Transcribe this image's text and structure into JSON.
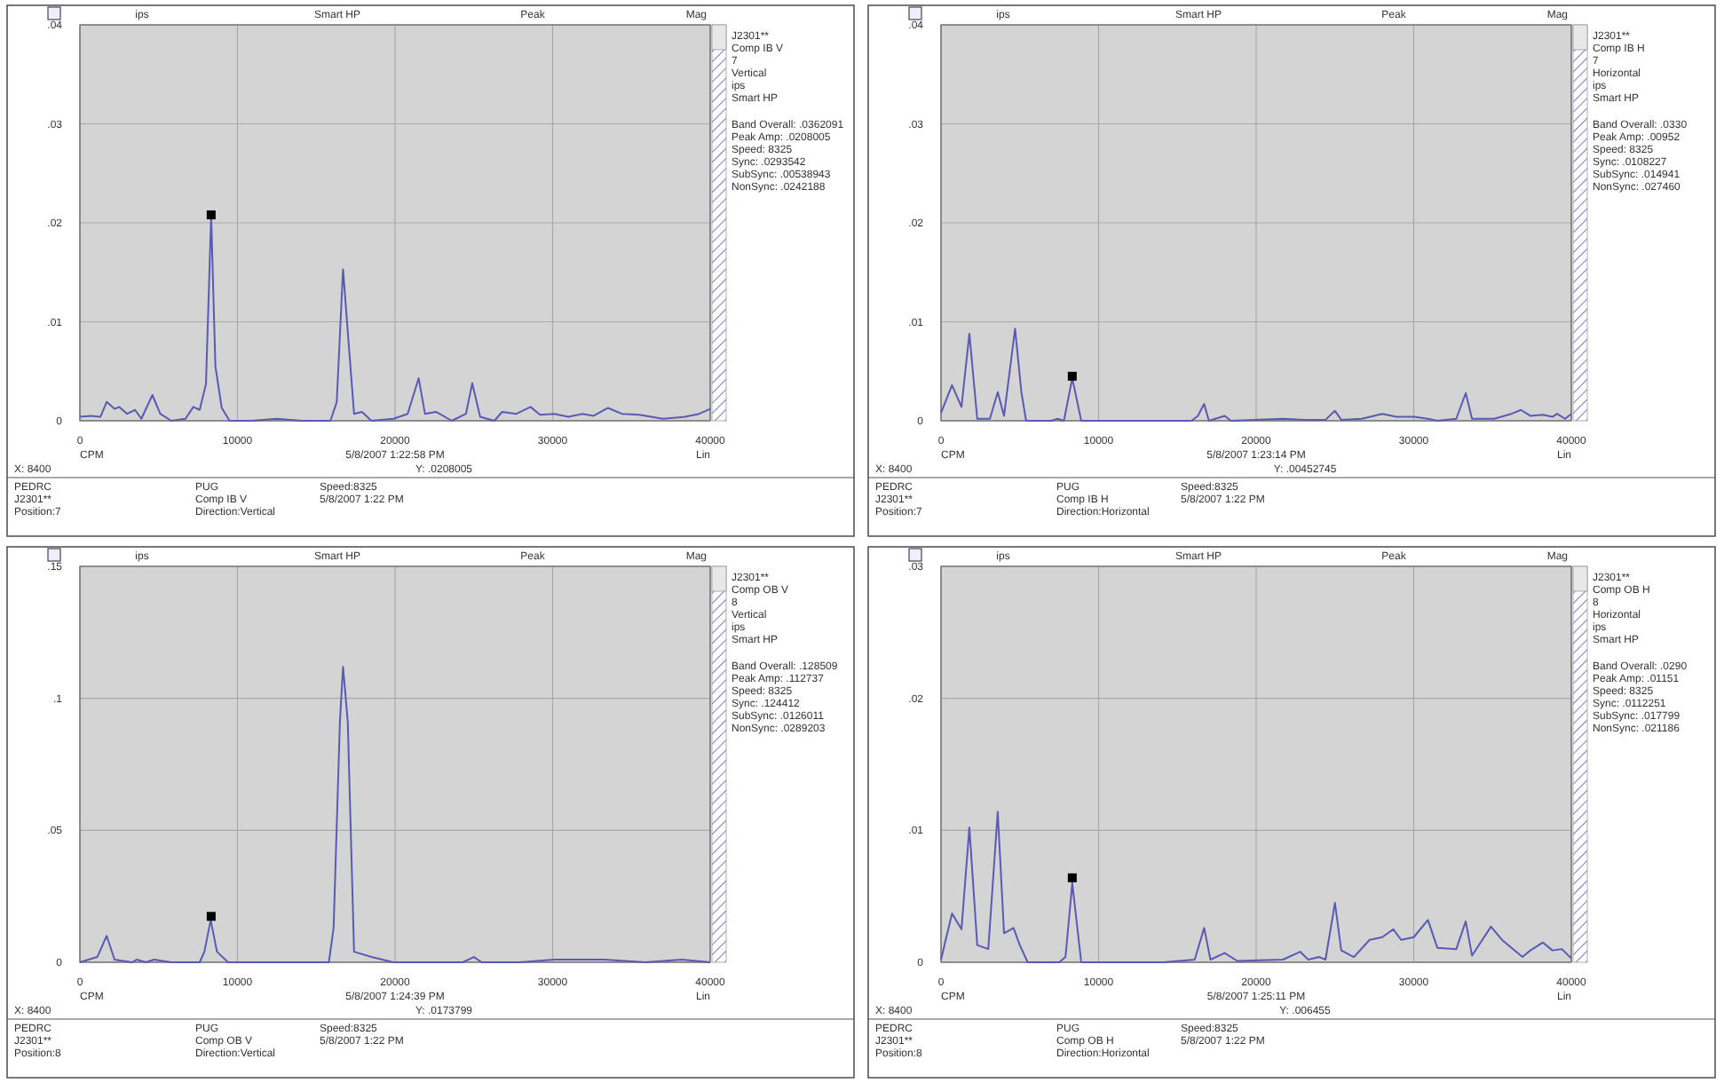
{
  "chart_data": [
    {
      "type": "line",
      "subtitle": "5/8/2007 1:22:58 PM",
      "xlabel": "CPM",
      "xlim": [
        0,
        40000
      ],
      "xticks": [
        0,
        10000,
        20000,
        30000,
        40000
      ],
      "ylim": [
        0,
        0.04
      ],
      "yticks": [
        {
          "value": 0,
          "label": "0"
        },
        {
          "value": 0.01,
          "label": ".01"
        },
        {
          "value": 0.02,
          "label": ".02"
        },
        {
          "value": 0.03,
          "label": ".03"
        },
        {
          "value": 0.04,
          "label": ".04"
        }
      ],
      "grid": true,
      "series": [
        {
          "color": "#5a5ab4",
          "x": [
            0,
            700,
            1300,
            1700,
            2200,
            2500,
            3000,
            3500,
            3900,
            4600,
            5100,
            5800,
            6700,
            7200,
            7600,
            8000,
            8330,
            8600,
            9000,
            9500,
            10900,
            12500,
            14100,
            15900,
            16300,
            16700,
            17000,
            17400,
            17900,
            18500,
            19900,
            20800,
            21500,
            21900,
            22600,
            23600,
            24500,
            24900,
            25400,
            26300,
            26800,
            27700,
            28600,
            29200,
            30100,
            31000,
            31900,
            32600,
            33500,
            34400,
            35500,
            37000,
            38400,
            39300,
            40000
          ],
          "values": [
            0.0004,
            0.0005,
            0.0004,
            0.0019,
            0.0012,
            0.0014,
            0.0007,
            0.0011,
            0.0002,
            0.0026,
            0.0007,
            0,
            0.0002,
            0.0014,
            0.0011,
            0.0037,
            0.0207,
            0.0055,
            0.0013,
            0,
            0,
            0.0002,
            0,
            0,
            0.0019,
            0.0153,
            0.009,
            0.0007,
            0.0009,
            0,
            0.0002,
            0.0007,
            0.0043,
            0.0007,
            0.0009,
            0,
            0.0007,
            0.0038,
            0.0004,
            0,
            0.0009,
            0.0007,
            0.0014,
            0.0006,
            0.0007,
            0.0004,
            0.0007,
            0.0005,
            0.0013,
            0.0007,
            0.0006,
            0.0002,
            0.0004,
            0.0007,
            0.0012
          ]
        },
        {
          "type": "scatter",
          "marker": "square",
          "color": "#000000",
          "x": [
            8330
          ],
          "values": [
            0.0208
          ]
        }
      ],
      "annotations": [
        "ips",
        "Smart HP",
        "Peak",
        "Mag",
        "Lin",
        "X: 8400",
        "Y: .0208005",
        "J2301**",
        "Comp IB V",
        "7",
        "Vertical",
        "ips",
        "Smart HP",
        "Band Overall: .0362091",
        "Peak Amp: .0208005",
        "Speed: 8325",
        "Sync: .0293542",
        "SubSync: .00538943",
        "NonSync: .0242188",
        "PEDRC",
        "J2301**",
        "Position:7",
        "PUG",
        "Comp IB V",
        "Direction:Vertical",
        "Speed:8325",
        "5/8/2007 1:22 PM"
      ]
    },
    {
      "type": "line",
      "subtitle": "5/8/2007 1:23:14 PM",
      "xlabel": "CPM",
      "xlim": [
        0,
        40000
      ],
      "xticks": [
        0,
        10000,
        20000,
        30000,
        40000
      ],
      "ylim": [
        0,
        0.04
      ],
      "yticks": [
        {
          "value": 0,
          "label": "0"
        },
        {
          "value": 0.01,
          "label": ".01"
        },
        {
          "value": 0.02,
          "label": ".02"
        },
        {
          "value": 0.03,
          "label": ".03"
        },
        {
          "value": 0.04,
          "label": ".04"
        }
      ],
      "grid": true,
      "series": [
        {
          "color": "#5a5ab4",
          "x": [
            0,
            700,
            1300,
            1800,
            2300,
            3100,
            3600,
            4000,
            4700,
            5100,
            5400,
            7000,
            7400,
            7800,
            8330,
            8900,
            10400,
            13000,
            15900,
            16300,
            16700,
            17000,
            18000,
            18400,
            19900,
            21700,
            23100,
            24400,
            25000,
            25400,
            26700,
            28000,
            28900,
            30000,
            30900,
            31500,
            32700,
            33300,
            33700,
            35100,
            36200,
            36800,
            37400,
            38200,
            38800,
            39100,
            39600,
            40000
          ],
          "values": [
            0.0008,
            0.0036,
            0.0014,
            0.0088,
            0.0002,
            0.0002,
            0.0029,
            0.0005,
            0.0093,
            0.0029,
            0,
            0,
            0.0002,
            0,
            0.0043,
            0,
            0,
            0,
            0,
            0.0005,
            0.0017,
            0,
            0.0005,
            0,
            0.0001,
            0.0002,
            0.0001,
            0.0001,
            0.001,
            0.0001,
            0.0002,
            0.0007,
            0.0004,
            0.0004,
            0.0002,
            0,
            0.0002,
            0.0028,
            0.0002,
            0.0002,
            0.0007,
            0.0011,
            0.0005,
            0.0006,
            0.0004,
            0.0007,
            0.0002,
            0.0007
          ]
        },
        {
          "type": "scatter",
          "marker": "square",
          "color": "#000000",
          "x": [
            8330
          ],
          "values": [
            0.0045
          ]
        }
      ],
      "annotations": [
        "ips",
        "Smart HP",
        "Peak",
        "Mag",
        "Lin",
        "X: 8400",
        "Y: .00452745",
        "J2301**",
        "Comp IB H",
        "7",
        "Horizontal",
        "ips",
        "Smart HP",
        "Band Overall: .0330",
        "Peak Amp: .00952",
        "Speed: 8325",
        "Sync: .0108227",
        "SubSync: .014941",
        "NonSync: .027460",
        "PEDRC",
        "J2301**",
        "Position:7",
        "PUG",
        "Comp IB H",
        "Direction:Horizontal",
        "Speed:8325",
        "5/8/2007 1:22 PM"
      ]
    },
    {
      "type": "line",
      "subtitle": "5/8/2007 1:24:39 PM",
      "xlabel": "CPM",
      "xlim": [
        0,
        40000
      ],
      "xticks": [
        0,
        10000,
        20000,
        30000,
        40000
      ],
      "ylim": [
        0,
        0.15
      ],
      "yticks": [
        {
          "value": 0,
          "label": "0"
        },
        {
          "value": 0.05,
          "label": ".05"
        },
        {
          "value": 0.1,
          "label": ".1"
        },
        {
          "value": 0.15,
          "label": ".15"
        }
      ],
      "grid": true,
      "series": [
        {
          "color": "#5a5ab4",
          "x": [
            0,
            1100,
            1700,
            2200,
            3300,
            3600,
            4200,
            4700,
            5800,
            7100,
            7600,
            7900,
            8300,
            8700,
            9400,
            11600,
            13400,
            14900,
            15800,
            16100,
            16500,
            16700,
            17000,
            17400,
            18500,
            19900,
            21400,
            22800,
            24300,
            25000,
            25500,
            27900,
            30100,
            33300,
            35900,
            38200,
            40000
          ],
          "values": [
            0,
            0.002,
            0.01,
            0.001,
            0,
            0.001,
            0,
            0.001,
            0,
            0,
            0,
            0.004,
            0.016,
            0.004,
            0,
            0,
            0,
            0,
            0,
            0.013,
            0.091,
            0.112,
            0.091,
            0.004,
            0.002,
            0,
            0,
            0,
            0,
            0.002,
            0,
            0,
            0.001,
            0.001,
            0,
            0.001,
            0
          ]
        },
        {
          "type": "scatter",
          "marker": "square",
          "color": "#000000",
          "x": [
            8330
          ],
          "values": [
            0.0174
          ]
        }
      ],
      "annotations": [
        "ips",
        "Smart HP",
        "Peak",
        "Mag",
        "Lin",
        "X: 8400",
        "Y: .0173799",
        "J2301**",
        "Comp OB V",
        "8",
        "Vertical",
        "ips",
        "Smart HP",
        "Band Overall: .128509",
        "Peak Amp: .112737",
        "Speed: 8325",
        "Sync: .124412",
        "SubSync: .0126011",
        "NonSync: .0289203",
        "PEDRC",
        "J2301**",
        "Position:8",
        "PUG",
        "Comp OB V",
        "Direction:Vertical",
        "Speed:8325",
        "5/8/2007 1:22 PM"
      ]
    },
    {
      "type": "line",
      "subtitle": "5/8/2007 1:25:11 PM",
      "xlabel": "CPM",
      "xlim": [
        0,
        40000
      ],
      "xticks": [
        0,
        10000,
        20000,
        30000,
        40000
      ],
      "ylim": [
        0,
        0.03
      ],
      "yticks": [
        {
          "value": 0,
          "label": "0"
        },
        {
          "value": 0.01,
          "label": ".01"
        },
        {
          "value": 0.02,
          "label": ".02"
        },
        {
          "value": 0.03,
          "label": ".03"
        }
      ],
      "grid": true,
      "series": [
        {
          "color": "#5a5ab4",
          "x": [
            0,
            700,
            1300,
            1800,
            2300,
            3000,
            3600,
            4000,
            4600,
            5000,
            5500,
            7500,
            7900,
            8330,
            8900,
            11200,
            14100,
            16100,
            16700,
            17100,
            18000,
            18800,
            21700,
            22800,
            23300,
            24000,
            24400,
            25000,
            25400,
            26200,
            27200,
            28000,
            28700,
            29200,
            30000,
            30900,
            31500,
            32700,
            33300,
            33700,
            34900,
            35600,
            36900,
            37400,
            38200,
            38800,
            39400,
            40000
          ],
          "values": [
            0.0002,
            0.0037,
            0.0025,
            0.0102,
            0.0013,
            0.001,
            0.0114,
            0.0022,
            0.0026,
            0.0013,
            0,
            0,
            0.0004,
            0.006,
            0,
            0,
            0,
            0.0002,
            0.0026,
            0.0002,
            0.0007,
            0.0001,
            0.0002,
            0.0008,
            0.0002,
            0.0004,
            0.0002,
            0.0045,
            0.0009,
            0.0004,
            0.0017,
            0.0019,
            0.0025,
            0.0017,
            0.0019,
            0.0032,
            0.0011,
            0.001,
            0.0031,
            0.0005,
            0.0027,
            0.0017,
            0.0004,
            0.0009,
            0.0015,
            0.0009,
            0.001,
            0.0003
          ]
        },
        {
          "type": "scatter",
          "marker": "square",
          "color": "#000000",
          "x": [
            8330
          ],
          "values": [
            0.0064
          ]
        }
      ],
      "annotations": [
        "ips",
        "Smart HP",
        "Peak",
        "Mag",
        "Lin",
        "X: 8400",
        "Y: .006455",
        "J2301**",
        "Comp OB H",
        "8",
        "Horizontal",
        "ips",
        "Smart HP",
        "Band Overall: .0290",
        "Peak Amp: .01151",
        "Speed: 8325",
        "Sync: .0112251",
        "SubSync: .017799",
        "NonSync: .021186",
        "PEDRC",
        "J2301**",
        "Position:8",
        "PUG",
        "Comp OB H",
        "Direction:Horizontal",
        "Speed:8325",
        "5/8/2007 1:22 PM"
      ]
    }
  ]
}
